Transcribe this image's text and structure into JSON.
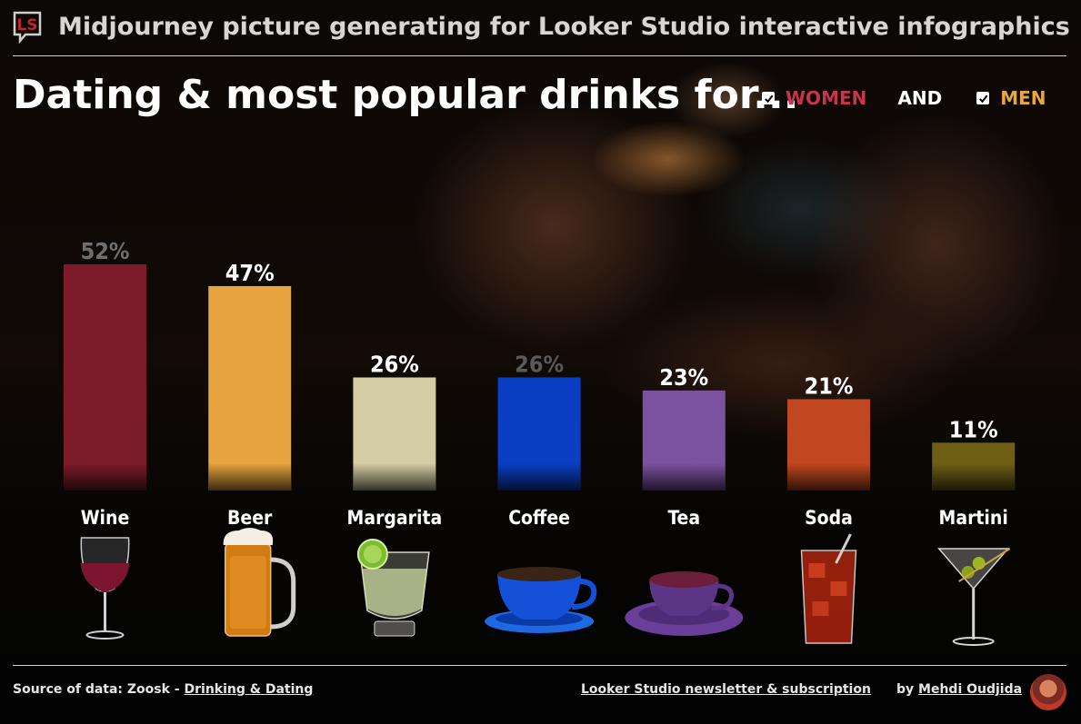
{
  "header": {
    "app_title": "Midjourney picture generating for Looker Studio interactive infographics",
    "logo_text": "LS"
  },
  "legend": {
    "women": "WOMEN",
    "and": "AND",
    "men": "MEN"
  },
  "chart_data": {
    "type": "bar",
    "title": "Dating & most popular drinks for...",
    "categories": [
      "Wine",
      "Beer",
      "Margarita",
      "Coffee",
      "Tea",
      "Soda",
      "Martini"
    ],
    "values": [
      52,
      47,
      26,
      26,
      23,
      21,
      11
    ],
    "value_labels": [
      "52%",
      "47%",
      "26%",
      "26%",
      "23%",
      "21%",
      "11%"
    ],
    "unit": "%",
    "ylim": [
      0,
      52
    ],
    "grid": false,
    "legend_position": "top-right",
    "bar_colors": [
      "#7d1b2a",
      "#e6a33e",
      "#d4cca4",
      "#0a3fc4",
      "#7b52a0",
      "#c0471f",
      "#6e5f14"
    ],
    "label_colors": [
      "#6f6f6f",
      "#ffffff",
      "#ffffff",
      "#5a5a5a",
      "#ffffff",
      "#ffffff",
      "#ffffff"
    ],
    "icons": [
      "wine-glass-icon",
      "beer-mug-icon",
      "margarita-glass-icon",
      "coffee-cup-icon",
      "tea-cup-icon",
      "soda-glass-icon",
      "martini-glass-icon"
    ]
  },
  "footer": {
    "source_prefix": "Source of data: Zoosk - ",
    "source_link": "Drinking & Dating",
    "newsletter_link": "Looker Studio newsletter & subscription",
    "by_prefix": "by ",
    "author_link": "Mehdi Oudjida"
  }
}
